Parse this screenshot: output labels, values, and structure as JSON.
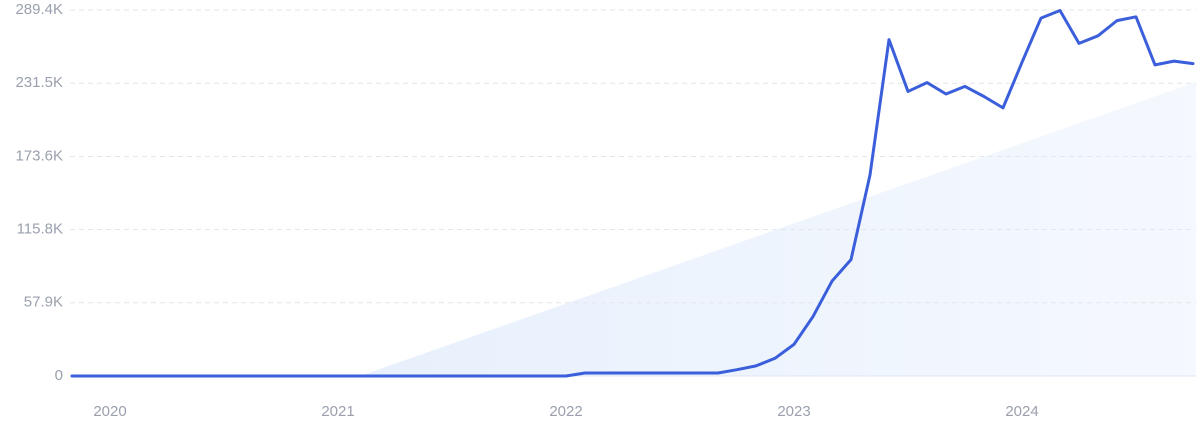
{
  "chart_data": {
    "type": "line",
    "categories": [
      null,
      null,
      "2020",
      null,
      null,
      null,
      null,
      null,
      null,
      null,
      null,
      null,
      null,
      null,
      "2021",
      null,
      null,
      null,
      null,
      null,
      null,
      null,
      null,
      null,
      null,
      null,
      "2022",
      null,
      null,
      null,
      null,
      null,
      null,
      null,
      null,
      null,
      null,
      null,
      "2023",
      null,
      null,
      null,
      null,
      null,
      null,
      null,
      null,
      null,
      null,
      null,
      "2024",
      null,
      null,
      null,
      null,
      null,
      null,
      null,
      null,
      null
    ],
    "series": [
      {
        "color": "#3b5fdb",
        "values": [
          0,
          0,
          0,
          0,
          0,
          0,
          0,
          0,
          0,
          0,
          0,
          0,
          0,
          0,
          0,
          0,
          0,
          0,
          0,
          0,
          0,
          0,
          0,
          0,
          0,
          0,
          0,
          2400,
          2400,
          2400,
          2400,
          2400,
          2400,
          2400,
          2400,
          5000,
          8000,
          14000,
          25000,
          47000,
          75000,
          92000,
          159000,
          266000,
          225000,
          232000,
          223000,
          229000,
          221000,
          212000,
          248000,
          283000,
          289000,
          263000,
          269000,
          281000,
          284000,
          246000,
          249000,
          247000
        ]
      }
    ],
    "ylim": [
      0,
      289400
    ],
    "yticks": [
      0,
      {
        "value": 57900,
        "label": "57.9K"
      },
      {
        "value": 115800,
        "label": "115.8K"
      },
      {
        "value": 173600,
        "label": "173.6K"
      },
      {
        "value": 231500,
        "label": "231.5K"
      },
      {
        "value": 289400,
        "label": "289.4K"
      }
    ],
    "grid": true
  }
}
